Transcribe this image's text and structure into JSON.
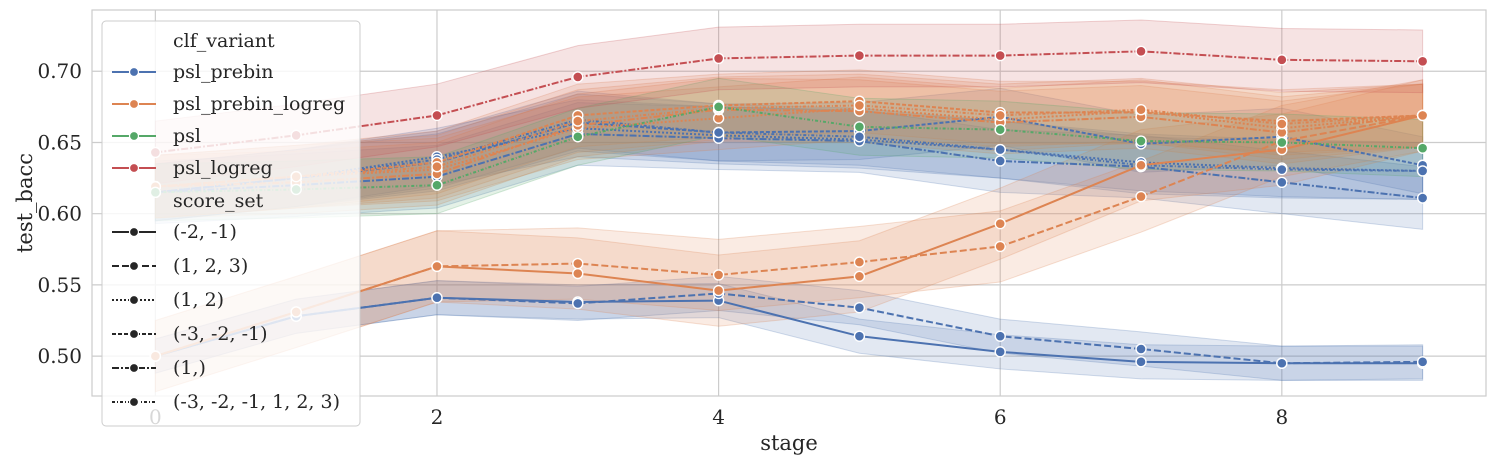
{
  "chart_data": {
    "type": "line",
    "xlabel": "stage",
    "ylabel": "test_bacc",
    "xlim": [
      -0.45,
      9.45
    ],
    "ylim": [
      0.472,
      0.743
    ],
    "xticks": [
      0,
      2,
      4,
      6,
      8
    ],
    "xtick_labels": [
      "0",
      "2",
      "4",
      "6",
      "8"
    ],
    "yticks": [
      0.5,
      0.55,
      0.6,
      0.65,
      0.7
    ],
    "ytick_labels": [
      "0.50",
      "0.55",
      "0.60",
      "0.65",
      "0.70"
    ],
    "grid": true,
    "legend_position": "upper-left",
    "legend_title_hue": "clf_variant",
    "legend_title_style": "score_set",
    "hue_entries": [
      {
        "name": "psl_prebin",
        "color": "#4c72b0"
      },
      {
        "name": "psl_prebin_logreg",
        "color": "#dd8452"
      },
      {
        "name": "psl",
        "color": "#55a868"
      },
      {
        "name": "psl_logreg",
        "color": "#c44e52"
      }
    ],
    "style_entries": [
      {
        "name": "(-2, -1)",
        "dash": ""
      },
      {
        "name": "(1, 2, 3)",
        "dash": "7,3"
      },
      {
        "name": "(1, 2)",
        "dash": "2,2"
      },
      {
        "name": "(-3, -2, -1)",
        "dash": "4,2"
      },
      {
        "name": "(1,)",
        "dash": "7,2,2,2"
      },
      {
        "name": "(-3, -2, -1, 1, 2, 3)",
        "dash": "3,2,1,2"
      }
    ],
    "x": [
      0,
      1,
      2,
      3,
      4,
      5,
      6,
      7,
      8,
      9
    ],
    "series": [
      {
        "hue": "psl_prebin",
        "style": "(-2, -1)",
        "values": [
          0.5,
          0.528,
          0.541,
          0.538,
          0.539,
          0.514,
          0.503,
          0.496,
          0.495,
          0.495
        ],
        "band": 0.012
      },
      {
        "hue": "psl_prebin",
        "style": "(1, 2, 3)",
        "values": [
          0.5,
          0.528,
          0.541,
          0.537,
          0.544,
          0.534,
          0.514,
          0.505,
          0.495,
          0.496
        ],
        "band": 0.012
      },
      {
        "hue": "psl_prebin",
        "style": "(1, 2)",
        "values": [
          0.615,
          0.625,
          0.64,
          0.66,
          0.655,
          0.652,
          0.645,
          0.636,
          0.632,
          0.63
        ],
        "band": 0.02
      },
      {
        "hue": "psl_prebin",
        "style": "(-3, -2, -1)",
        "values": [
          0.615,
          0.625,
          0.636,
          0.664,
          0.657,
          0.658,
          0.668,
          0.649,
          0.654,
          0.634
        ],
        "band": 0.02
      },
      {
        "hue": "psl_prebin",
        "style": "(1,)",
        "values": [
          0.615,
          0.62,
          0.626,
          0.656,
          0.653,
          0.651,
          0.637,
          0.633,
          0.622,
          0.611
        ],
        "band": 0.022
      },
      {
        "hue": "psl_prebin",
        "style": "(-3, -2, -1, 1, 2, 3)",
        "values": [
          0.615,
          0.625,
          0.638,
          0.666,
          0.657,
          0.654,
          0.645,
          0.634,
          0.631,
          0.63
        ],
        "band": 0.02
      },
      {
        "hue": "psl_prebin_logreg",
        "style": "(-2, -1)",
        "values": [
          0.5,
          0.531,
          0.563,
          0.558,
          0.546,
          0.556,
          0.593,
          0.634,
          0.645,
          0.669
        ],
        "band": 0.025
      },
      {
        "hue": "psl_prebin_logreg",
        "style": "(1, 2, 3)",
        "values": [
          0.5,
          0.531,
          0.563,
          0.565,
          0.557,
          0.566,
          0.577,
          0.612,
          0.651,
          0.669
        ],
        "band": 0.025
      },
      {
        "hue": "psl_prebin_logreg",
        "style": "(1, 2)",
        "values": [
          0.619,
          0.626,
          0.631,
          0.66,
          0.667,
          0.674,
          0.666,
          0.672,
          0.66,
          0.669
        ],
        "band": 0.022
      },
      {
        "hue": "psl_prebin_logreg",
        "style": "(-3, -2, -1)",
        "values": [
          0.619,
          0.626,
          0.636,
          0.669,
          0.676,
          0.679,
          0.671,
          0.671,
          0.665,
          0.669
        ],
        "band": 0.022
      },
      {
        "hue": "psl_prebin_logreg",
        "style": "(1,)",
        "values": [
          0.619,
          0.622,
          0.628,
          0.662,
          0.673,
          0.672,
          0.664,
          0.668,
          0.657,
          0.669
        ],
        "band": 0.022
      },
      {
        "hue": "psl_prebin_logreg",
        "style": "(-3, -2, -1, 1, 2, 3)",
        "values": [
          0.619,
          0.626,
          0.633,
          0.665,
          0.674,
          0.676,
          0.669,
          0.673,
          0.663,
          0.669
        ],
        "band": 0.022
      },
      {
        "hue": "psl",
        "style": "(-3, -2, -1, 1, 2, 3)",
        "values": [
          0.615,
          0.617,
          0.62,
          0.654,
          0.675,
          0.661,
          0.659,
          0.651,
          0.65,
          0.646
        ],
        "band": 0.02
      },
      {
        "hue": "psl_logreg",
        "style": "(1,)",
        "values": [
          0.643,
          0.655,
          0.669,
          0.696,
          0.709,
          0.711,
          0.711,
          0.714,
          0.708,
          0.707
        ],
        "band": 0.022
      }
    ]
  }
}
